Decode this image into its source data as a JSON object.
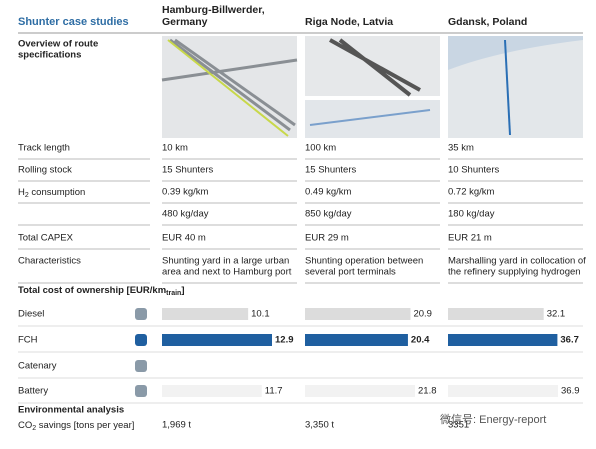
{
  "header": {
    "title": "Shunter case studies",
    "columns": [
      [
        "Hamburg-Billwerder,",
        "Germany"
      ],
      [
        "Riga Node, Latvia"
      ],
      [
        "Gdansk, Poland"
      ]
    ]
  },
  "overview": [
    "Overview of route",
    "specifications"
  ],
  "specs": [
    {
      "label": "Track length",
      "values": [
        "10 km",
        "100 km",
        "35 km"
      ]
    },
    {
      "label": "Rolling stock",
      "values": [
        "15 Shunters",
        "15 Shunters",
        "10 Shunters"
      ]
    },
    {
      "label": {
        "main": "H",
        "sub": "2",
        "rest": " consumption"
      },
      "values": [
        "0.39 kg/km",
        "0.49 kg/km",
        "0.72 kg/km"
      ]
    },
    {
      "values": [
        "480 kg/day",
        "850 kg/day",
        "180 kg/day"
      ]
    },
    {
      "label": "Total CAPEX",
      "values": [
        "EUR 40 m",
        "EUR 29 m",
        "EUR 21 m"
      ]
    },
    {
      "label": "Characteristics",
      "values": [
        [
          "Shunting yard in a large urban",
          "area and next to Hamburg port"
        ],
        [
          "Shunting operation between",
          "several port terminals"
        ],
        [
          "Marshalling yard in collocation of",
          "the refinery supplying hydrogen"
        ]
      ]
    }
  ],
  "tco": {
    "title": {
      "main": "Total cost of ownership [EUR/km",
      "sub": "train",
      "rest": "]"
    },
    "rows": [
      {
        "label": "Diesel",
        "values": [
          10.1,
          20.9,
          32.1
        ]
      },
      {
        "label": "FCH",
        "values": [
          12.9,
          20.4,
          36.7
        ]
      },
      {
        "label": "Catenary",
        "values": [
          null,
          null,
          null
        ]
      },
      {
        "label": "Battery",
        "values": [
          11.7,
          21.8,
          36.9
        ]
      }
    ]
  },
  "environment": {
    "title": "Environmental analysis",
    "label": {
      "main": "CO",
      "sub": "2",
      "rest": " savings [tons per year]"
    },
    "values": [
      "1,969 t",
      "3,350 t",
      "3351"
    ]
  },
  "watermark": "微信号: Energy-report"
}
